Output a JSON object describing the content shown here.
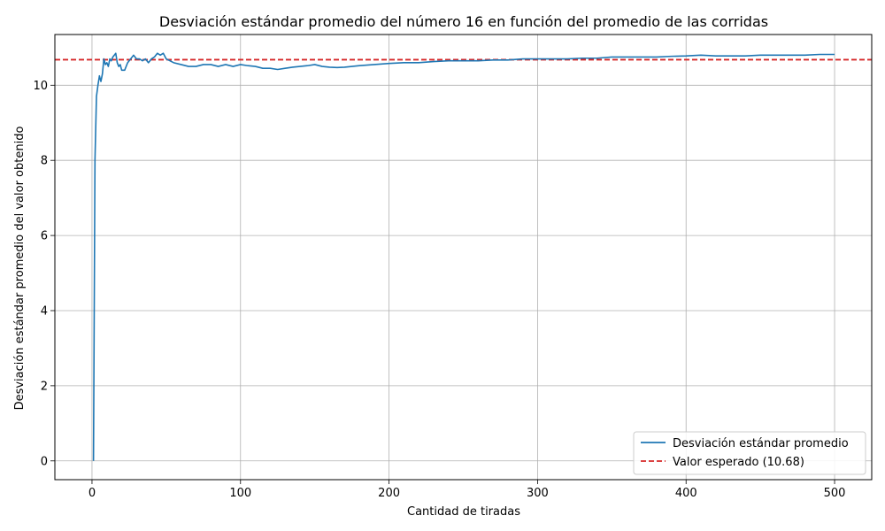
{
  "chart_data": {
    "type": "line",
    "title": "Desviación estándar promedio del número 16 en función del promedio de las corridas",
    "xlabel": "Cantidad de tiradas",
    "ylabel": "Desviación estándar promedio del valor obtenido",
    "xlim": [
      -25,
      525
    ],
    "ylim": [
      -0.5,
      11.35
    ],
    "xticks": [
      0,
      100,
      200,
      300,
      400,
      500
    ],
    "yticks": [
      0,
      2,
      4,
      6,
      8,
      10
    ],
    "grid": true,
    "legend_position": "lower-right",
    "series": [
      {
        "name": "Desviación estándar promedio",
        "color": "#1f77b4",
        "style": "solid",
        "x": [
          1,
          2,
          3,
          4,
          5,
          6,
          7,
          8,
          9,
          10,
          11,
          12,
          13,
          14,
          15,
          16,
          17,
          18,
          19,
          20,
          22,
          24,
          26,
          28,
          30,
          32,
          34,
          36,
          38,
          40,
          42,
          44,
          46,
          48,
          50,
          55,
          60,
          65,
          70,
          75,
          80,
          85,
          90,
          95,
          100,
          105,
          110,
          115,
          120,
          125,
          130,
          135,
          140,
          145,
          150,
          155,
          160,
          165,
          170,
          175,
          180,
          190,
          200,
          210,
          220,
          230,
          240,
          250,
          260,
          270,
          280,
          290,
          300,
          310,
          320,
          330,
          340,
          350,
          360,
          370,
          380,
          390,
          400,
          410,
          420,
          430,
          440,
          450,
          460,
          470,
          480,
          490,
          500
        ],
        "y": [
          0.0,
          8.0,
          9.7,
          10.0,
          10.25,
          10.1,
          10.3,
          10.7,
          10.55,
          10.6,
          10.5,
          10.7,
          10.65,
          10.75,
          10.8,
          10.85,
          10.6,
          10.5,
          10.55,
          10.4,
          10.4,
          10.6,
          10.7,
          10.8,
          10.7,
          10.7,
          10.65,
          10.7,
          10.6,
          10.7,
          10.75,
          10.85,
          10.8,
          10.85,
          10.7,
          10.6,
          10.55,
          10.5,
          10.5,
          10.55,
          10.55,
          10.5,
          10.55,
          10.5,
          10.55,
          10.52,
          10.5,
          10.45,
          10.45,
          10.42,
          10.45,
          10.48,
          10.5,
          10.52,
          10.55,
          10.5,
          10.48,
          10.47,
          10.48,
          10.5,
          10.52,
          10.55,
          10.58,
          10.6,
          10.6,
          10.63,
          10.65,
          10.65,
          10.65,
          10.67,
          10.67,
          10.7,
          10.7,
          10.7,
          10.7,
          10.72,
          10.72,
          10.75,
          10.75,
          10.75,
          10.75,
          10.77,
          10.78,
          10.8,
          10.78,
          10.78,
          10.78,
          10.8,
          10.8,
          10.8,
          10.8,
          10.82,
          10.82
        ]
      }
    ],
    "reference_line": {
      "name": "Valor esperado (10.68)",
      "y": 10.68,
      "color": "#d62728",
      "style": "dashed"
    }
  }
}
